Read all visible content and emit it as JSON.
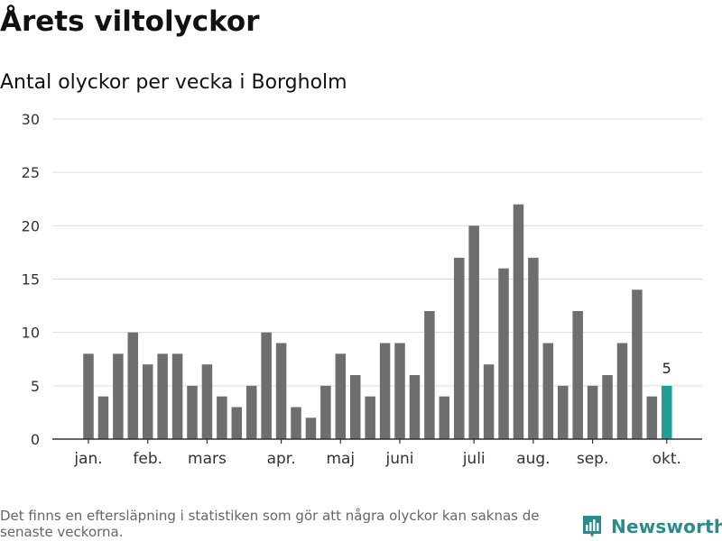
{
  "title": "Årets viltolyckor",
  "subtitle": "Antal olyckor per vecka i Borgholm",
  "footnote": "Det finns en eftersläpning i statistiken som gör att några olyckor kan saknas de senaste veckorna.",
  "brand": {
    "name": "Newsworthy",
    "icon": "newsworthy-logo-icon",
    "color": "#2a8c8a"
  },
  "chart_data": {
    "type": "bar",
    "title": "Antal olyckor per vecka i Borgholm",
    "ylim": [
      0,
      30
    ],
    "yticks": [
      0,
      5,
      10,
      15,
      20,
      25,
      30
    ],
    "grid": true,
    "values": [
      8,
      4,
      8,
      10,
      7,
      8,
      8,
      5,
      7,
      4,
      3,
      5,
      10,
      9,
      3,
      2,
      5,
      8,
      6,
      4,
      9,
      9,
      6,
      12,
      4,
      17,
      20,
      7,
      16,
      22,
      17,
      9,
      5,
      12,
      5,
      6,
      9,
      14,
      4,
      5
    ],
    "month_labels": [
      {
        "label": "jan.",
        "week": 1
      },
      {
        "label": "feb.",
        "week": 5
      },
      {
        "label": "mars",
        "week": 9
      },
      {
        "label": "apr.",
        "week": 14
      },
      {
        "label": "maj",
        "week": 18
      },
      {
        "label": "juni",
        "week": 22
      },
      {
        "label": "juli",
        "week": 27
      },
      {
        "label": "aug.",
        "week": 31
      },
      {
        "label": "sep.",
        "week": 35
      },
      {
        "label": "okt.",
        "week": 40
      }
    ],
    "highlight_last_label": "5",
    "colors": {
      "bar": "#6e6d70",
      "highlight": "#1e9e96",
      "grid": "#dddddd",
      "axis": "#333333"
    }
  }
}
